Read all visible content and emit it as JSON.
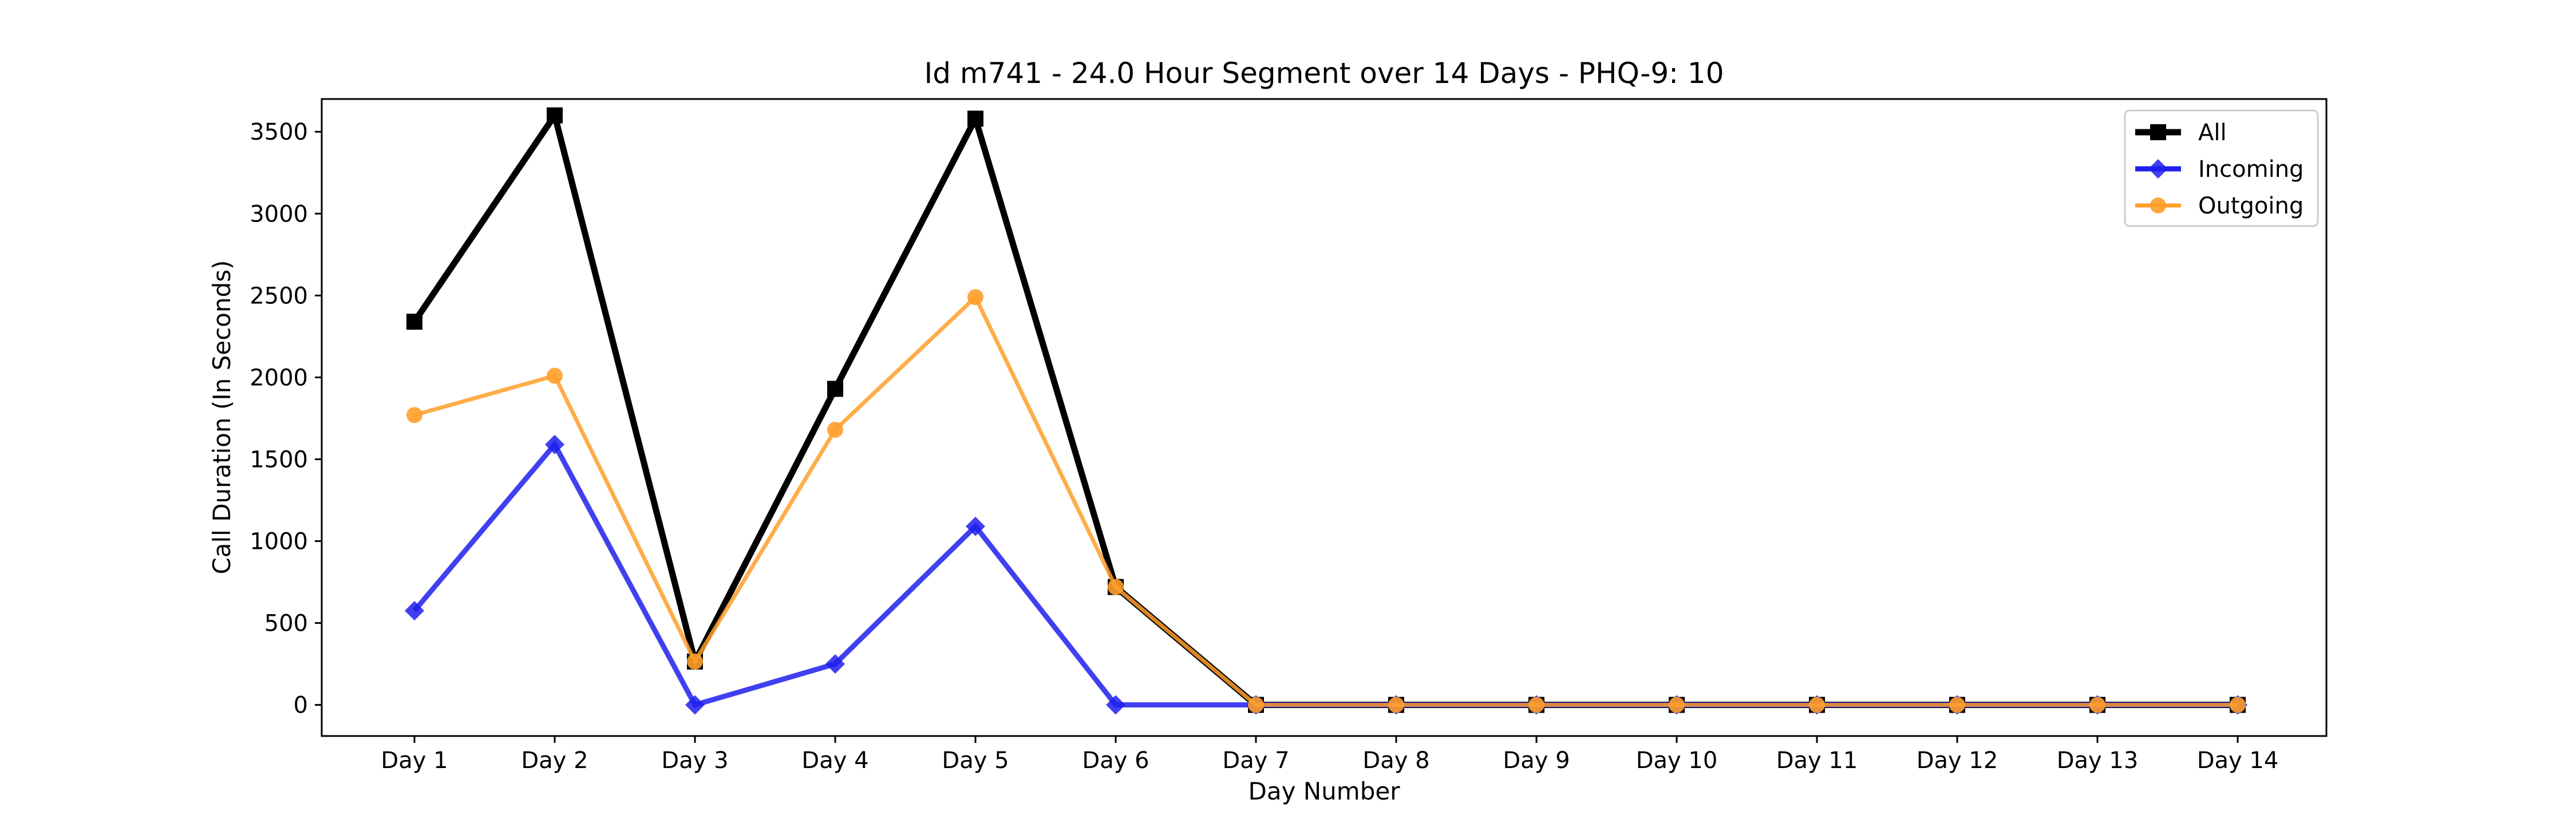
{
  "chart_data": {
    "type": "line",
    "title": "Id m741 - 24.0 Hour Segment over 14 Days - PHQ-9: 10",
    "xlabel": "Day Number",
    "ylabel": "Call Duration (In Seconds)",
    "categories": [
      "Day 1",
      "Day 2",
      "Day 3",
      "Day 4",
      "Day 5",
      "Day 6",
      "Day 7",
      "Day 8",
      "Day 9",
      "Day 10",
      "Day 11",
      "Day 12",
      "Day 13",
      "Day 14"
    ],
    "ylim": [
      -190,
      3700
    ],
    "yticks": [
      0,
      500,
      1000,
      1500,
      2000,
      2500,
      3000,
      3500
    ],
    "ytick_labels": [
      "0",
      "500",
      "1000",
      "1500",
      "2000",
      "2500",
      "3000",
      "3500"
    ],
    "grid": false,
    "legend_position": "top-right",
    "series": [
      {
        "name": "All",
        "color": "#000000",
        "marker": "square",
        "values": [
          2340,
          3600,
          265,
          1930,
          3580,
          720,
          0,
          0,
          0,
          0,
          0,
          0,
          0,
          0
        ]
      },
      {
        "name": "Incoming",
        "color": "#1f1fee",
        "marker": "diamond",
        "values": [
          575,
          1590,
          0,
          250,
          1090,
          0,
          0,
          0,
          0,
          0,
          0,
          0,
          0,
          0
        ]
      },
      {
        "name": "Outgoing",
        "color": "#ff9f2a",
        "marker": "circle",
        "values": [
          1770,
          2010,
          265,
          1680,
          2490,
          720,
          0,
          0,
          0,
          0,
          0,
          0,
          0,
          0
        ]
      }
    ]
  }
}
